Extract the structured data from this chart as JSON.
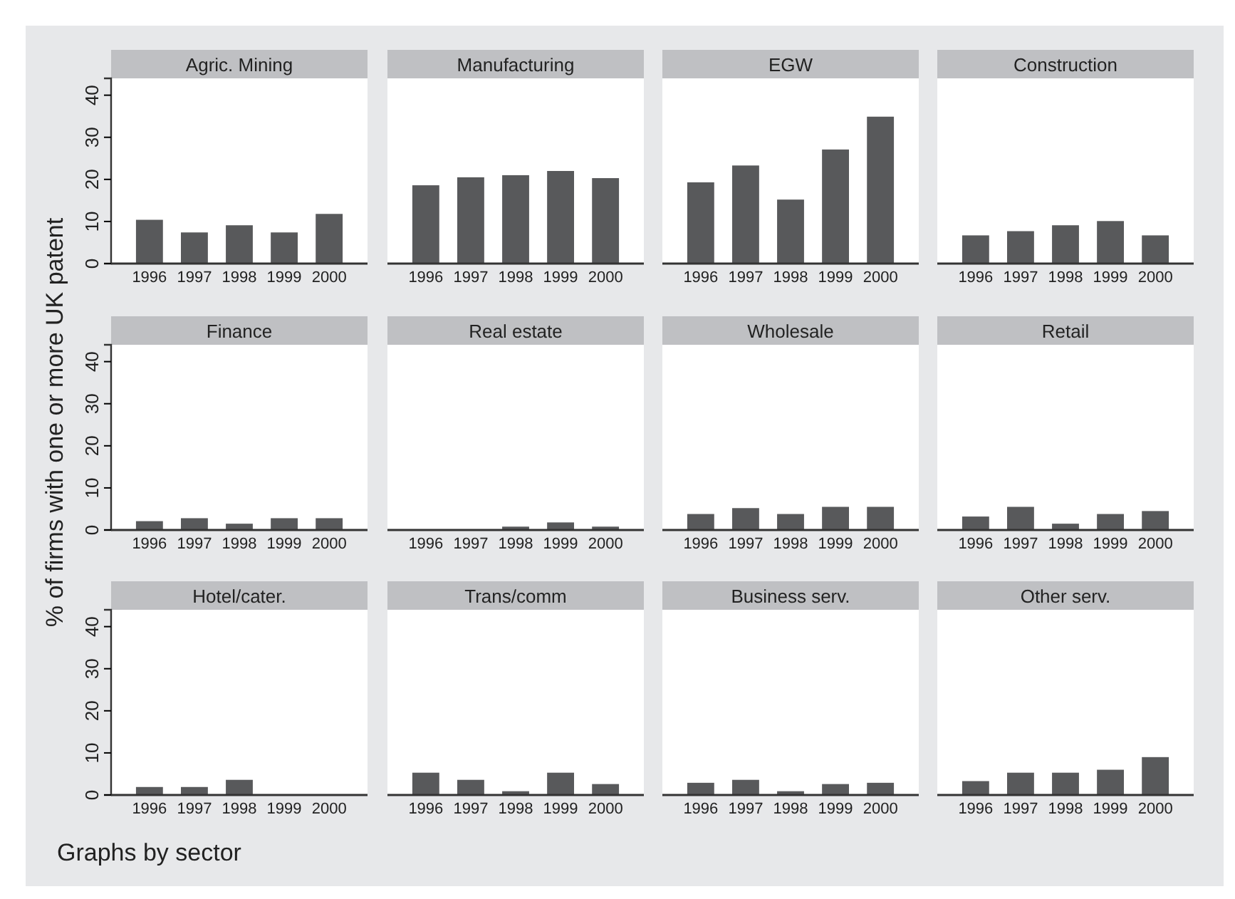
{
  "chart_data": [
    {
      "type": "bar",
      "title": "Agric. Mining",
      "categories": [
        "1996",
        "1997",
        "1998",
        "1999",
        "2000"
      ],
      "values": [
        10.4,
        7.4,
        9.1,
        7.4,
        11.8
      ],
      "color": "#58595b",
      "ylim": [
        0,
        44
      ],
      "yticks": [
        0,
        10,
        20,
        30,
        40
      ],
      "grid": false
    },
    {
      "type": "bar",
      "title": "Manufacturing",
      "categories": [
        "1996",
        "1997",
        "1998",
        "1999",
        "2000"
      ],
      "values": [
        18.6,
        20.5,
        21.0,
        22.0,
        20.3
      ],
      "color": "#58595b",
      "ylim": [
        0,
        44
      ],
      "tick_labels": "x",
      "grid": false
    },
    {
      "type": "bar",
      "title": "EGW",
      "categories": [
        "1996",
        "1997",
        "1998",
        "1999",
        "2000"
      ],
      "values": [
        19.3,
        23.3,
        15.2,
        27.1,
        34.9
      ],
      "color": "#58595b",
      "ylim": [
        0,
        44
      ],
      "tick_labels": "x",
      "grid": false
    },
    {
      "type": "bar",
      "title": "Construction",
      "categories": [
        "1996",
        "1997",
        "1998",
        "1999",
        "2000"
      ],
      "values": [
        6.7,
        7.7,
        9.1,
        10.1,
        6.7
      ],
      "color": "#58595b",
      "ylim": [
        0,
        44
      ],
      "tick_labels": "x",
      "grid": false
    },
    {
      "type": "bar",
      "title": "Finance",
      "ylabel": "% of firms with one or more UK patent",
      "categories": [
        "1996",
        "1997",
        "1998",
        "1999",
        "2000"
      ],
      "values": [
        2.1,
        2.8,
        1.5,
        2.8,
        2.8
      ],
      "color": "#58595b",
      "ylim": [
        0,
        44
      ],
      "yticks": [
        0,
        10,
        20,
        30,
        40
      ],
      "grid": false
    },
    {
      "type": "bar",
      "title": "Real estate",
      "categories": [
        "1996",
        "1997",
        "1998",
        "1999",
        "2000"
      ],
      "values": [
        0,
        0,
        0.8,
        1.8,
        0.8
      ],
      "color": "#58595b",
      "ylim": [
        0,
        44
      ],
      "tick_labels": "x",
      "grid": false
    },
    {
      "type": "bar",
      "title": "Wholesale",
      "categories": [
        "1996",
        "1997",
        "1998",
        "1999",
        "2000"
      ],
      "values": [
        3.8,
        5.2,
        3.8,
        5.5,
        5.5
      ],
      "color": "#58595b",
      "ylim": [
        0,
        44
      ],
      "tick_labels": "x",
      "grid": false
    },
    {
      "type": "bar",
      "title": "Retail",
      "categories": [
        "1996",
        "1997",
        "1998",
        "1999",
        "2000"
      ],
      "values": [
        3.2,
        5.5,
        1.5,
        3.8,
        4.5
      ],
      "color": "#58595b",
      "ylim": [
        0,
        44
      ],
      "tick_labels": "x",
      "grid": false
    },
    {
      "type": "bar",
      "title": "Hotel/cater.",
      "annotations": [
        "Graphs by sector"
      ],
      "categories": [
        "1996",
        "1997",
        "1998",
        "1999",
        "2000"
      ],
      "values": [
        1.9,
        1.9,
        3.6,
        0,
        0
      ],
      "color": "#58595b",
      "ylim": [
        0,
        44
      ],
      "yticks": [
        0,
        10,
        20,
        30,
        40
      ],
      "grid": false
    },
    {
      "type": "bar",
      "title": "Trans/comm",
      "categories": [
        "1996",
        "1997",
        "1998",
        "1999",
        "2000"
      ],
      "values": [
        5.3,
        3.6,
        0.9,
        5.3,
        2.6
      ],
      "color": "#58595b",
      "ylim": [
        0,
        44
      ],
      "tick_labels": "x",
      "grid": false
    },
    {
      "type": "bar",
      "title": "Business serv.",
      "categories": [
        "1996",
        "1997",
        "1998",
        "1999",
        "2000"
      ],
      "values": [
        2.9,
        3.6,
        0.9,
        2.6,
        2.9
      ],
      "color": "#58595b",
      "ylim": [
        0,
        44
      ],
      "tick_labels": "x",
      "grid": false
    },
    {
      "type": "bar",
      "title": "Other serv.",
      "categories": [
        "1996",
        "1997",
        "1998",
        "1999",
        "2000"
      ],
      "values": [
        3.3,
        5.3,
        5.3,
        6.0,
        9.0
      ],
      "color": "#58595b",
      "ylim": [
        0,
        44
      ],
      "tick_labels": "x",
      "grid": false
    }
  ]
}
